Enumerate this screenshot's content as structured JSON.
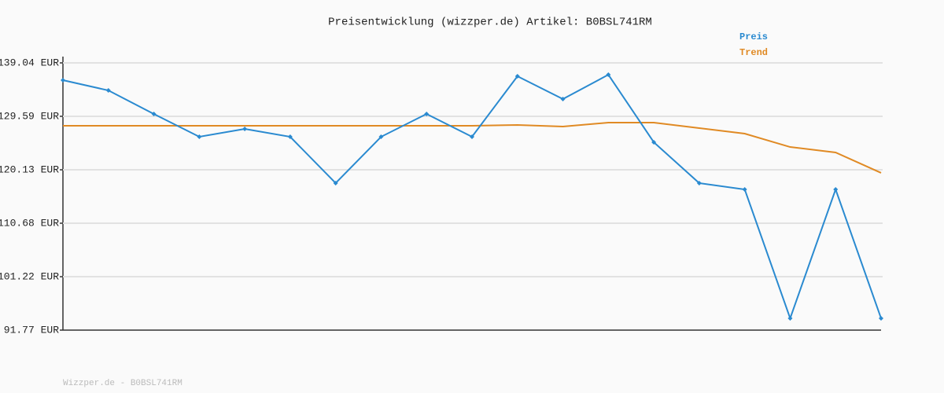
{
  "chart_data": {
    "type": "line",
    "title": "Preisentwicklung (wizzper.de) Artikel: B0BSL741RM",
    "footer": "Wizzper.de - B0BSL741RM",
    "categories": [
      null,
      null,
      null,
      null,
      null,
      null,
      null,
      null,
      null,
      null,
      null,
      null,
      null,
      null,
      null,
      null,
      null,
      null,
      null
    ],
    "series": [
      {
        "name": "Preis",
        "color": "#2a8ad0",
        "markers": true,
        "values": [
          135.98,
          134.17,
          130.0,
          125.97,
          127.36,
          125.97,
          117.77,
          125.97,
          130.0,
          125.97,
          136.68,
          132.64,
          136.95,
          125.0,
          117.77,
          116.66,
          93.86,
          116.66,
          93.86
        ]
      },
      {
        "name": "Trend",
        "color": "#e08a24",
        "markers": false,
        "values": [
          127.92,
          127.92,
          127.92,
          127.92,
          127.92,
          127.92,
          127.92,
          127.92,
          127.92,
          127.92,
          128.06,
          127.78,
          128.47,
          128.47,
          127.5,
          126.53,
          124.16,
          123.19,
          119.58
        ]
      }
    ],
    "ylim": [
      91.77,
      139.04
    ],
    "yticks": [
      {
        "value": 91.77,
        "label": "91.77 EUR"
      },
      {
        "value": 101.22,
        "label": "101.22 EUR"
      },
      {
        "value": 110.68,
        "label": "110.68 EUR"
      },
      {
        "value": 120.13,
        "label": "120.13 EUR"
      },
      {
        "value": 129.59,
        "label": "129.59 EUR"
      },
      {
        "value": 139.04,
        "label": "139.04 EUR"
      }
    ],
    "grid": true
  }
}
